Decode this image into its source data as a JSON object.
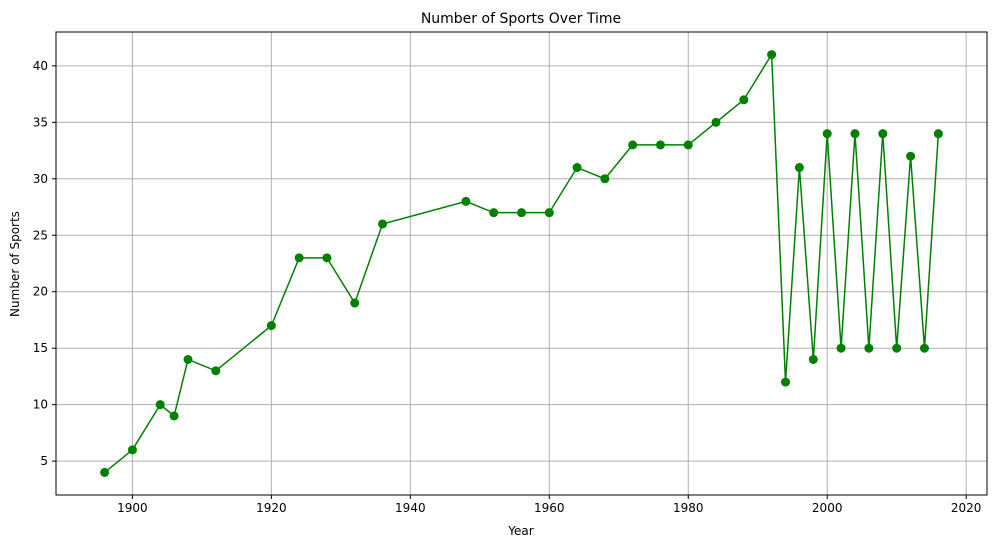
{
  "chart_data": {
    "type": "line",
    "title": "Number of Sports Over Time",
    "xlabel": "Year",
    "ylabel": "Number of Sports",
    "xlim": [
      1889,
      2023
    ],
    "ylim": [
      2,
      43
    ],
    "x_ticks": [
      1900,
      1920,
      1940,
      1960,
      1980,
      2000,
      2020
    ],
    "y_ticks": [
      5,
      10,
      15,
      20,
      25,
      30,
      35,
      40
    ],
    "grid": true,
    "marker": "circle",
    "color": "#008000",
    "series": [
      {
        "x": [
          1896,
          1900,
          1904,
          1906,
          1908,
          1912,
          1920,
          1924,
          1928,
          1932,
          1936,
          1948,
          1952,
          1956,
          1960,
          1964,
          1968,
          1972,
          1976,
          1980,
          1984,
          1988,
          1992,
          1994,
          1996,
          1998,
          2000,
          2002,
          2004,
          2006,
          2008,
          2010,
          2012,
          2014,
          2016
        ],
        "y": [
          4,
          6,
          10,
          9,
          14,
          13,
          17,
          23,
          23,
          19,
          26,
          28,
          27,
          27,
          27,
          31,
          30,
          33,
          33,
          33,
          35,
          37,
          41,
          12,
          31,
          14,
          34,
          15,
          34,
          15,
          34,
          15,
          32,
          15,
          34
        ]
      }
    ]
  }
}
